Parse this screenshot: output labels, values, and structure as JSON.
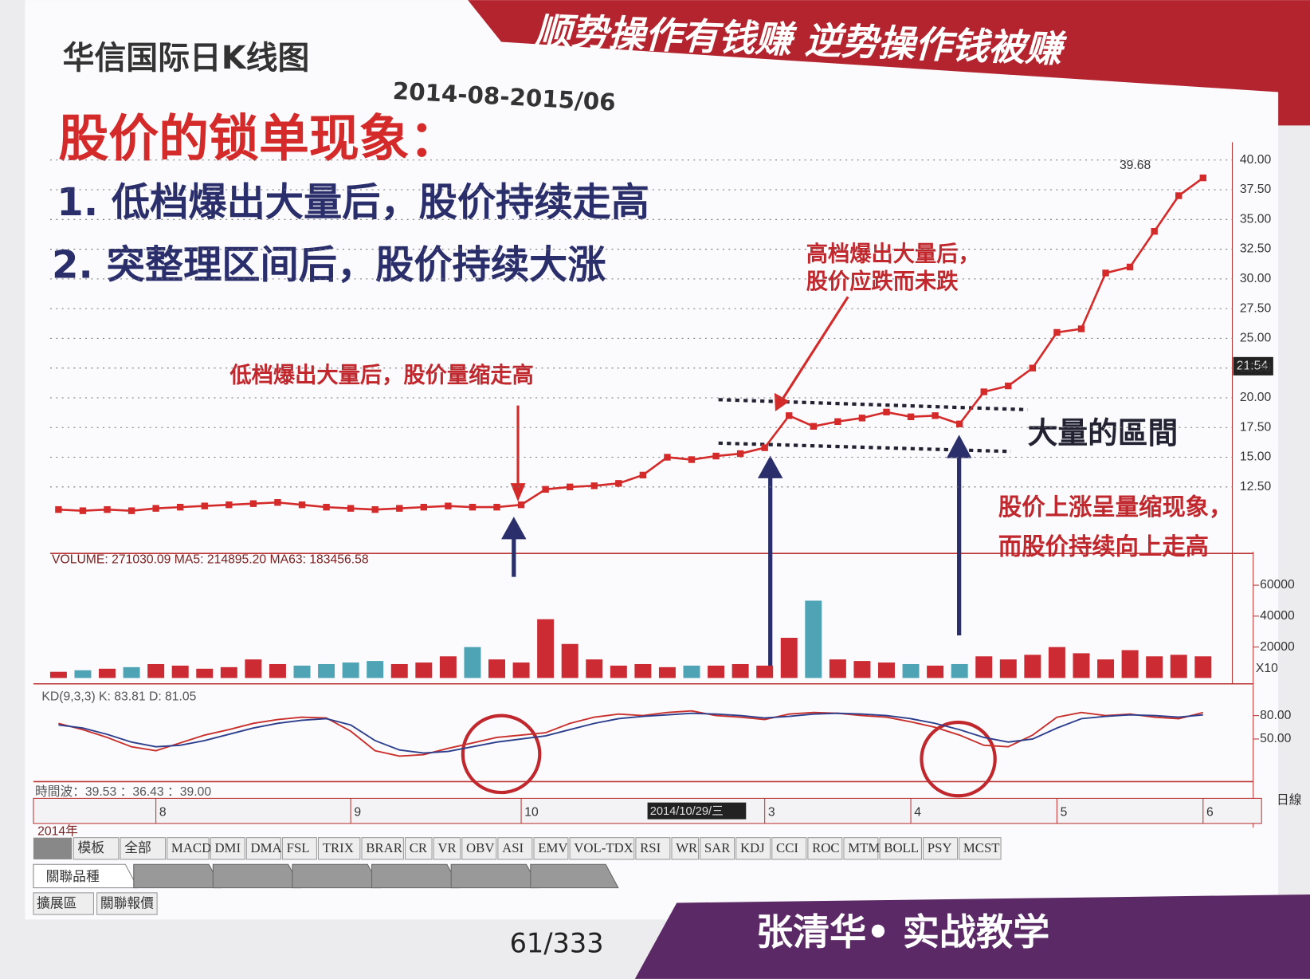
{
  "header": {
    "banner": "顺势操作有钱赚  逆势操作钱被赚",
    "chart_title": "华信国际日K线图",
    "date_range": "2014-08-2015/06",
    "headline": "股价的锁单现象：",
    "points": [
      "1. 低档爆出大量后，股价持续走高",
      "2. 突整理区间后，股价持续大涨"
    ]
  },
  "annotations": {
    "high_volume": [
      "高档爆出大量后，",
      "股价应跌而未跌"
    ],
    "low_volume": "低档爆出大量后，股价量缩走高",
    "range": "大量的區間",
    "shrink": [
      "股价上涨呈量缩现象，",
      "而股价持续向上走高"
    ]
  },
  "chart_data": [
    {
      "type": "line",
      "name": "price",
      "price_label": "39.68",
      "time": "21:54",
      "color": "#d42a2a",
      "categories": [
        null,
        null,
        null,
        null,
        "8",
        null,
        null,
        null,
        null,
        null,
        null,
        null,
        "9",
        null,
        null,
        null,
        null,
        null,
        null,
        "10",
        null,
        null,
        null,
        null,
        null,
        null,
        null,
        null,
        null,
        "3",
        null,
        null,
        null,
        null,
        null,
        "4",
        null,
        null,
        null,
        null,
        null,
        "5",
        null,
        null,
        null,
        null,
        null,
        "6"
      ],
      "values": [
        10.6,
        10.5,
        10.6,
        10.5,
        10.7,
        10.8,
        10.9,
        11.0,
        11.1,
        11.2,
        11.0,
        10.8,
        10.7,
        10.6,
        10.7,
        10.8,
        10.9,
        10.8,
        10.8,
        11.0,
        12.3,
        12.5,
        12.6,
        12.8,
        13.5,
        15.0,
        14.8,
        15.1,
        15.3,
        15.8,
        18.5,
        17.6,
        18.0,
        18.3,
        18.8,
        18.4,
        18.5,
        17.8,
        20.5,
        21.0,
        22.5,
        25.5,
        25.8,
        30.5,
        31.0,
        34.0,
        37.0,
        38.5
      ],
      "ylim": [
        7.4,
        41.5
      ],
      "yticks": [
        {
          "value": 12.5,
          "label": "12.50"
        },
        {
          "value": 15,
          "label": "15.00"
        },
        {
          "value": 17.5,
          "label": "17.50"
        },
        {
          "value": 20,
          "label": "20.00"
        },
        {
          "value": 22.5,
          "label": "22.50"
        },
        {
          "value": 25,
          "label": "25.00"
        },
        {
          "value": 27.5,
          "label": "27.50"
        },
        {
          "value": 30,
          "label": "30.00"
        },
        {
          "value": 32.5,
          "label": "32.50"
        },
        {
          "value": 35,
          "label": "35.00"
        },
        {
          "value": 37.5,
          "label": "37.50"
        },
        {
          "value": 40,
          "label": "40.00"
        }
      ],
      "grid": true
    },
    {
      "type": "bar",
      "name": "volume",
      "title": "VOLUME: 271030.09  MA5: 214895.20  MA63: 183456.58",
      "unit": "X10",
      "up_color": "#cc2b33",
      "down_color": "#4ea3b4",
      "values": [
        4000,
        5000,
        6000,
        7000,
        9000,
        8000,
        6000,
        7000,
        12000,
        9000,
        8000,
        9000,
        10000,
        11000,
        9000,
        10000,
        14000,
        20000,
        12000,
        10000,
        38000,
        22000,
        12000,
        8000,
        9000,
        7000,
        8000,
        8000,
        9000,
        8000,
        26000,
        50000,
        12000,
        11000,
        10000,
        9000,
        8000,
        9000,
        14000,
        12000,
        15000,
        20000,
        16000,
        12000,
        18000,
        14000,
        15000,
        14000
      ],
      "ylim": [
        0,
        65000
      ],
      "yticks": [
        20000,
        40000,
        60000
      ]
    },
    {
      "type": "line",
      "name": "kd",
      "title": "KD(9,3,3)  K: 83.81  D: 81.05",
      "ylim": [
        -5,
        108
      ],
      "yticks": [
        {
          "value": 50,
          "label": "50.00"
        },
        {
          "value": 80,
          "label": "80.00"
        }
      ],
      "series": [
        {
          "name": "K",
          "color": "#c9302c",
          "values": [
            70,
            62,
            52,
            40,
            35,
            45,
            55,
            62,
            70,
            75,
            78,
            77,
            60,
            35,
            28,
            30,
            38,
            45,
            52,
            55,
            58,
            70,
            78,
            82,
            80,
            84,
            86,
            80,
            78,
            75,
            82,
            84,
            83,
            80,
            78,
            72,
            65,
            55,
            42,
            40,
            55,
            78,
            84,
            80,
            82,
            78,
            76,
            84
          ]
        },
        {
          "name": "D",
          "color": "#2c3e8c",
          "values": [
            68,
            64,
            56,
            46,
            40,
            42,
            48,
            56,
            64,
            70,
            74,
            76,
            68,
            48,
            36,
            32,
            34,
            40,
            46,
            50,
            54,
            62,
            70,
            76,
            79,
            81,
            83,
            82,
            80,
            77,
            79,
            82,
            83,
            82,
            80,
            76,
            70,
            62,
            52,
            46,
            50,
            64,
            76,
            79,
            81,
            80,
            78,
            81
          ]
        }
      ]
    }
  ],
  "indicator": "時間波：39.53 ：36.43 ：39.00",
  "time_axis": {
    "year": "2014年",
    "cursor_date": "2014/10/29/三",
    "period": "日線"
  },
  "toolbar": {
    "buttons": [
      "模板",
      "全部",
      "MACD",
      "DMI",
      "DMA",
      "FSL",
      "TRIX",
      "BRAR",
      "CR",
      "VR",
      "OBV",
      "ASI",
      "EMV",
      "VOL-TDX",
      "RSI",
      "WR",
      "SAR",
      "KDJ",
      "CCI",
      "ROC",
      "MTM",
      "BOLL",
      "PSY",
      "MCST"
    ],
    "sheet_tabs": [
      "關聯品種"
    ],
    "bottom_tabs": [
      "擴展區",
      "關聯報價"
    ]
  },
  "footer": {
    "page": "61/333",
    "author": "张清华• 实战教学"
  }
}
